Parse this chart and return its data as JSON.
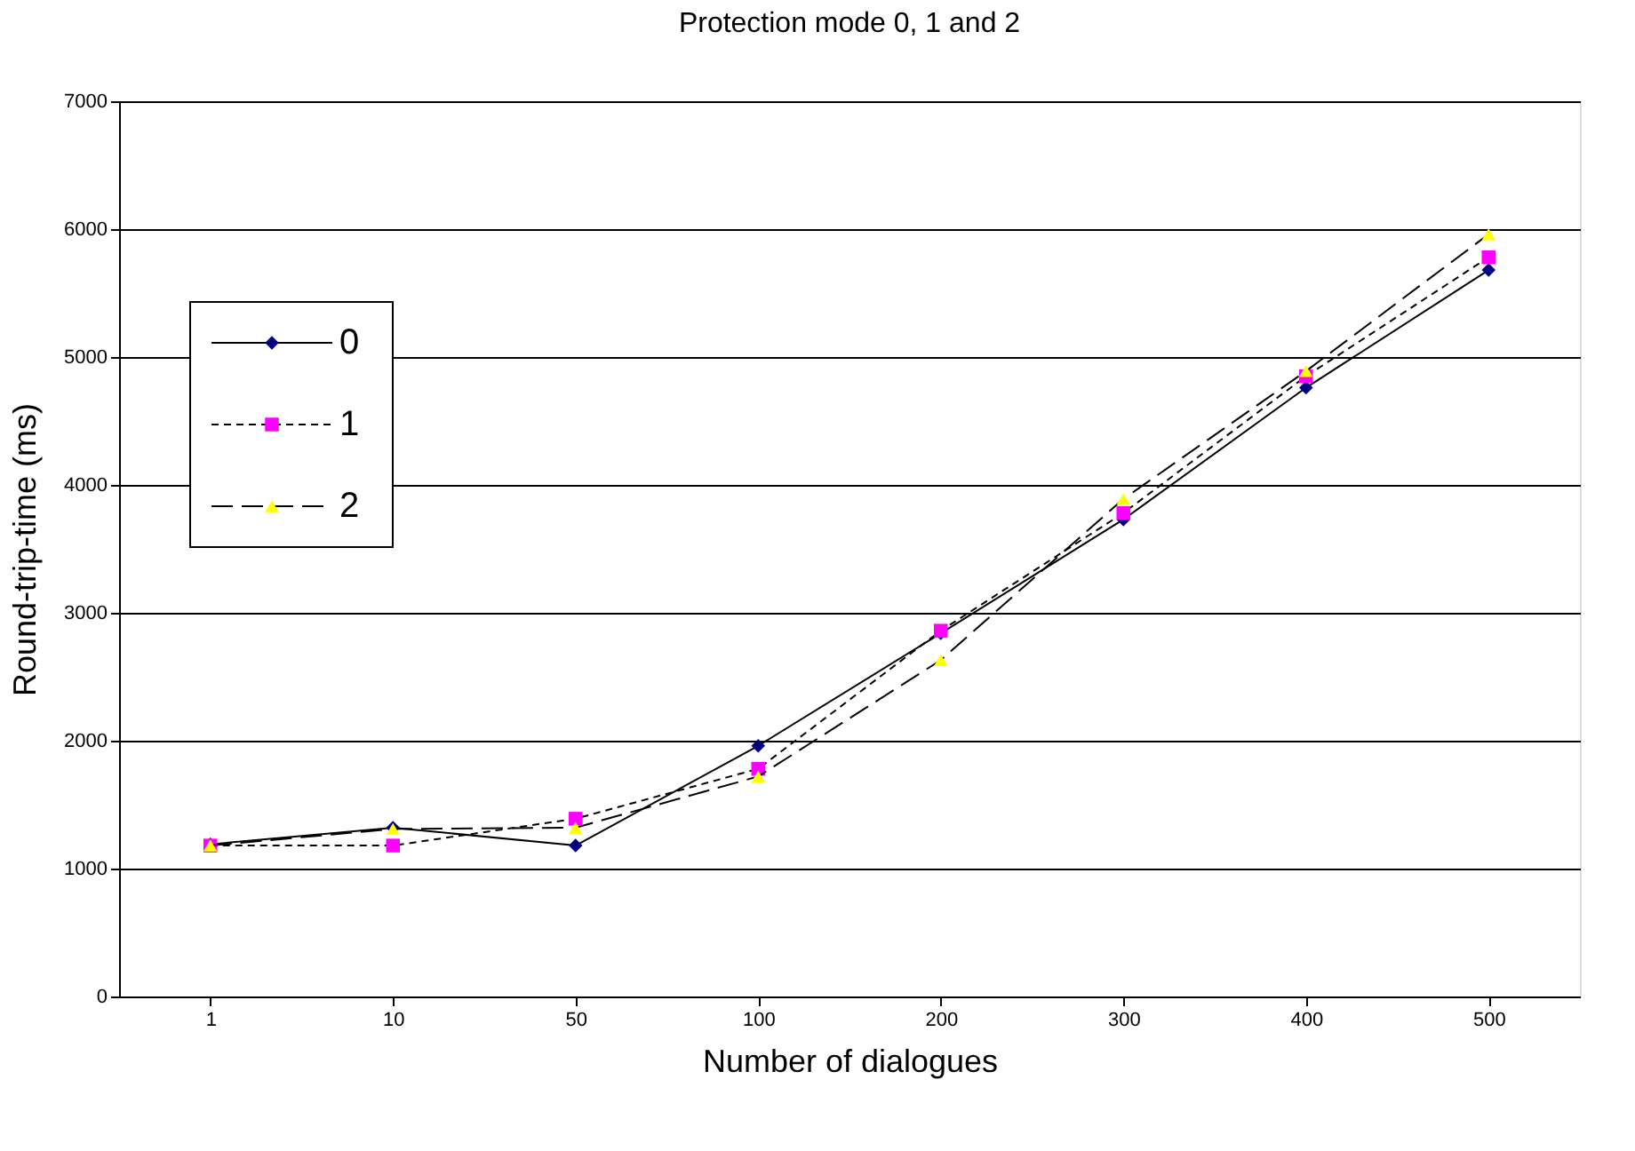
{
  "chart_data": {
    "type": "line",
    "title": "Protection mode 0, 1 and 2",
    "xlabel": "Number of dialogues",
    "ylabel": "Round-trip-time (ms)",
    "categories": [
      "1",
      "10",
      "50",
      "100",
      "200",
      "300",
      "400",
      "500"
    ],
    "series": [
      {
        "name": "0",
        "color": "#000080",
        "marker": "diamond",
        "line_style": "solid",
        "values": [
          1190,
          1320,
          1180,
          1960,
          2840,
          3730,
          4760,
          5680
        ]
      },
      {
        "name": "1",
        "color": "#ff00ff",
        "marker": "square",
        "line_style": "dashed",
        "values": [
          1180,
          1180,
          1390,
          1780,
          2860,
          3780,
          4850,
          5780
        ]
      },
      {
        "name": "2",
        "color": "#ffff00",
        "marker": "triangle",
        "line_style": "longdash",
        "values": [
          1180,
          1310,
          1320,
          1720,
          2630,
          3890,
          4890,
          5960
        ]
      }
    ],
    "ylim": [
      0,
      7000
    ],
    "yticks": [
      0,
      1000,
      2000,
      3000,
      4000,
      5000,
      6000,
      7000
    ],
    "grid": "y",
    "legend": "top left"
  }
}
